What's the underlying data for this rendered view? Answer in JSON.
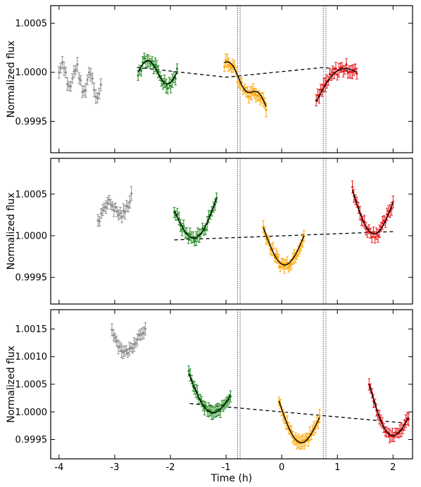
{
  "chart_data": {
    "type": "scatter",
    "xlabel": "Time (h)",
    "ylabel": "Normalized flux",
    "xlim": [
      -4.15,
      2.35
    ],
    "x_ticks": [
      -4,
      -3,
      -2,
      -1,
      0,
      1,
      2
    ],
    "x_tick_labels": [
      "-4",
      "-3",
      "-2",
      "-1",
      "0",
      "1",
      "2"
    ],
    "vertical_lines": [
      -0.77,
      0.77
    ],
    "colors": {
      "gray": "#8c8c8c",
      "green": "#1f8a1f",
      "orange": "#ffa500",
      "red": "#e8191b",
      "model": "#000000"
    },
    "panels": [
      {
        "ylim": [
          0.99918,
          1.00068
        ],
        "y_ticks": [
          0.9995,
          1.0,
          1.0005
        ],
        "y_tick_labels": [
          "0.9995",
          "1.0000",
          "1.0005"
        ],
        "baseline": {
          "x": [
            -2.6,
            -1.0,
            0.75,
            1.3
          ],
          "y": [
            1.00005,
            0.99995,
            1.00005,
            1.0
          ]
        },
        "segments": [
          {
            "color": "gray",
            "x": [
              -4.0,
              -3.25
            ],
            "y": [
              1.0,
              0.99985
            ],
            "wave": 0.00012,
            "cycles": 3,
            "n": 26,
            "fit": false
          },
          {
            "color": "green",
            "x": [
              -2.58,
              -1.88
            ],
            "y": [
              1.0,
              1.0
            ],
            "wave": 0.00012,
            "cycles": 1,
            "n": 26,
            "fit": true
          },
          {
            "color": "orange",
            "x": [
              -1.03,
              -0.28
            ],
            "y": [
              1.0001,
              0.99965
            ],
            "wave": 6e-05,
            "cycles": 1.5,
            "n": 30,
            "fit": true
          },
          {
            "color": "red",
            "x": [
              0.62,
              1.35
            ],
            "y": [
              0.9997,
              1.0
            ],
            "wave": 0.00016,
            "cycles": 0.5,
            "n": 28,
            "fit": true
          }
        ]
      },
      {
        "ylim": [
          0.99918,
          1.00093
        ],
        "y_ticks": [
          0.9995,
          1.0,
          1.0005
        ],
        "y_tick_labels": [
          "0.9995",
          "1.0000",
          "1.0005"
        ],
        "baseline": {
          "x": [
            -1.93,
            2.0
          ],
          "y": [
            0.99995,
            1.00005
          ]
        },
        "segments": [
          {
            "color": "gray",
            "x": [
              -3.3,
              -2.7
            ],
            "y": [
              1.00015,
              1.0005
            ],
            "wave": 0.00015,
            "cycles": 1,
            "n": 22,
            "fit": false
          },
          {
            "color": "green",
            "x": [
              -1.93,
              -1.17
            ],
            "y": [
              1.0003,
              1.00045
            ],
            "wave": -0.0004,
            "cycles": 0.5,
            "n": 28,
            "fit": true
          },
          {
            "color": "orange",
            "x": [
              -0.33,
              0.4
            ],
            "y": [
              1.0001,
              1.0
            ],
            "wave": -0.0004,
            "cycles": 0.5,
            "n": 30,
            "fit": true
          },
          {
            "color": "red",
            "x": [
              1.27,
              2.0
            ],
            "y": [
              1.00055,
              1.0004
            ],
            "wave": -0.00045,
            "cycles": 0.5,
            "n": 28,
            "fit": true
          }
        ]
      },
      {
        "ylim": [
          0.99915,
          1.00185
        ],
        "y_ticks": [
          0.9995,
          1.0,
          1.0005,
          1.001,
          1.0015
        ],
        "y_tick_labels": [
          "0.9995",
          "1.0000",
          "1.0005",
          "1.0010",
          "1.0015"
        ],
        "baseline": {
          "x": [
            -1.65,
            2.2
          ],
          "y": [
            1.00015,
            0.9998
          ]
        },
        "segments": [
          {
            "color": "gray",
            "x": [
              -3.05,
              -2.45
            ],
            "y": [
              1.0015,
              1.0012
            ],
            "wave": -0.0003,
            "cycles": 0.7,
            "n": 22,
            "fit": false
          },
          {
            "color": "green",
            "x": [
              -1.67,
              -0.92
            ],
            "y": [
              1.0007,
              1.0003
            ],
            "wave": -0.0005,
            "cycles": 0.5,
            "n": 30,
            "fit": true
          },
          {
            "color": "orange",
            "x": [
              -0.05,
              0.68
            ],
            "y": [
              1.0002,
              0.9999
            ],
            "wave": -0.0006,
            "cycles": 0.5,
            "n": 30,
            "fit": true
          },
          {
            "color": "red",
            "x": [
              1.57,
              2.28
            ],
            "y": [
              1.0005,
              0.9999
            ],
            "wave": -0.0006,
            "cycles": 0.5,
            "n": 28,
            "fit": true
          }
        ]
      }
    ]
  }
}
